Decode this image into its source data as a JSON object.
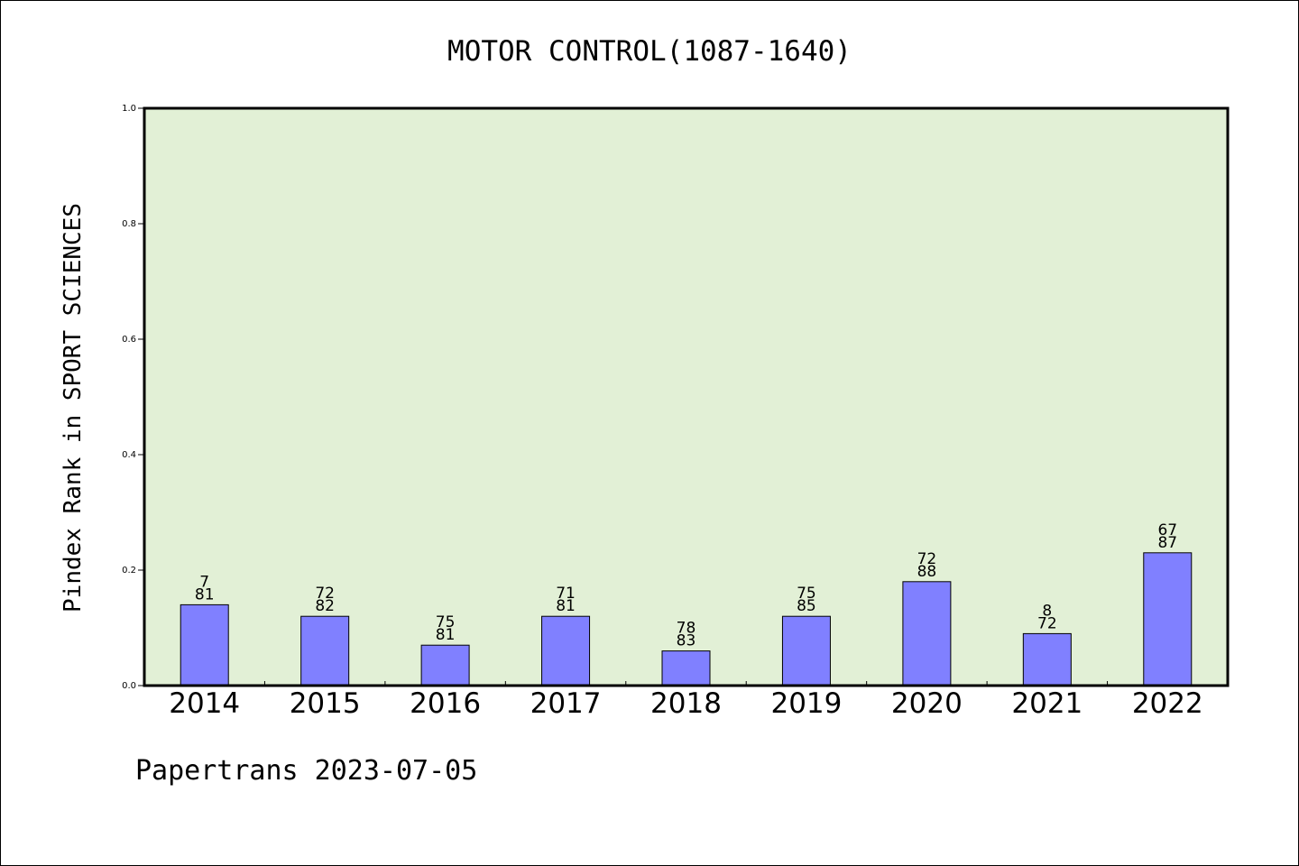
{
  "chart_data": {
    "type": "bar",
    "title": "MOTOR CONTROL(1087-1640)",
    "xlabel": "",
    "ylabel": "Pindex Rank in SPORT SCIENCES",
    "ylim": [
      0.0,
      1.0
    ],
    "yticks": [
      "0.0",
      "0.2",
      "0.4",
      "0.6",
      "0.8",
      "1.0"
    ],
    "grid": false,
    "categories": [
      "2014",
      "2015",
      "2016",
      "2017",
      "2018",
      "2019",
      "2020",
      "2021",
      "2022"
    ],
    "values": [
      0.14,
      0.12,
      0.07,
      0.12,
      0.06,
      0.12,
      0.18,
      0.09,
      0.23
    ],
    "bar_labels": [
      [
        "7",
        "81"
      ],
      [
        "72",
        "82"
      ],
      [
        "75",
        "81"
      ],
      [
        "71",
        "81"
      ],
      [
        "78",
        "83"
      ],
      [
        "75",
        "85"
      ],
      [
        "72",
        "88"
      ],
      [
        "8",
        "72"
      ],
      [
        "67",
        "87"
      ]
    ],
    "footer": "Papertrans 2023-07-05",
    "colors": {
      "plot_background": "#e2f0d6",
      "bar_fill": "#8080ff",
      "bar_stroke": "#000000"
    }
  }
}
